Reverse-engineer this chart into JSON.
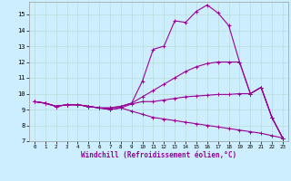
{
  "xlabel": "Windchill (Refroidissement éolien,°C)",
  "bg_color": "#cceeff",
  "grid_color": "#b8ddd8",
  "line_color": "#990099",
  "x": [
    0,
    1,
    2,
    3,
    4,
    5,
    6,
    7,
    8,
    9,
    10,
    11,
    12,
    13,
    14,
    15,
    16,
    17,
    18,
    19,
    20,
    21,
    22,
    23
  ],
  "line1_y": [
    9.5,
    9.4,
    9.2,
    9.3,
    9.3,
    9.2,
    9.1,
    9.1,
    9.2,
    9.4,
    10.8,
    12.8,
    13.0,
    14.6,
    14.5,
    15.2,
    15.6,
    15.1,
    14.3,
    12.0,
    10.0,
    10.4,
    8.5,
    7.2
  ],
  "line2_y": [
    9.5,
    9.4,
    9.2,
    9.3,
    9.3,
    9.2,
    9.1,
    9.1,
    9.2,
    9.4,
    9.8,
    10.2,
    10.6,
    11.0,
    11.4,
    11.7,
    11.9,
    12.0,
    12.0,
    12.0,
    10.0,
    10.4,
    8.5,
    7.2
  ],
  "line3_y": [
    9.5,
    9.4,
    9.2,
    9.3,
    9.3,
    9.2,
    9.1,
    9.0,
    9.1,
    9.35,
    9.5,
    9.5,
    9.6,
    9.7,
    9.8,
    9.85,
    9.9,
    9.95,
    9.95,
    10.0,
    10.0,
    10.4,
    8.5,
    7.2
  ],
  "line4_y": [
    9.5,
    9.4,
    9.2,
    9.3,
    9.3,
    9.2,
    9.1,
    9.0,
    9.1,
    8.9,
    8.7,
    8.5,
    8.4,
    8.3,
    8.2,
    8.1,
    8.0,
    7.9,
    7.8,
    7.7,
    7.6,
    7.5,
    7.35,
    7.2
  ],
  "ylim": [
    7,
    15.8
  ],
  "xlim": [
    -0.5,
    23.5
  ],
  "yticks": [
    7,
    8,
    9,
    10,
    11,
    12,
    13,
    14,
    15
  ],
  "xticks": [
    0,
    1,
    2,
    3,
    4,
    5,
    6,
    7,
    8,
    9,
    10,
    11,
    12,
    13,
    14,
    15,
    16,
    17,
    18,
    19,
    20,
    21,
    22,
    23
  ]
}
